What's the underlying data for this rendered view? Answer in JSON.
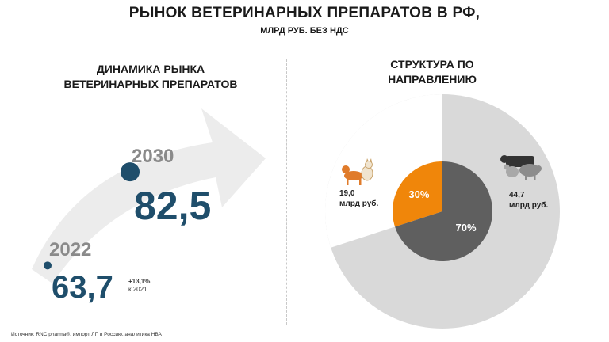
{
  "header": {
    "title": "РЫНОК ВЕТЕРИНАРНЫХ ПРЕПАРАТОВ В РФ,",
    "subtitle": "МЛРД РУБ. БЕЗ НДС"
  },
  "left_panel": {
    "heading_line1": "ДИНАМИКА РЫНКА",
    "heading_line2": "ВЕТЕРИНАРНЫХ ПРЕПАРАТОВ",
    "growth_line1": "+13,1%",
    "growth_line2": "к 2021"
  },
  "right_panel": {
    "heading_line1": "СТРУКТУРА ПО",
    "heading_line2": "НАПРАВЛЕНИЮ",
    "pets_value": "19,0",
    "pets_unit": "млрд руб.",
    "farm_value": "44,7",
    "farm_unit": "млрд руб.",
    "pets_icon": "dog-cat-icon",
    "farm_icon": "farm-animals-icon"
  },
  "source": "Источник: RNC pharma®, импорт ЛП в Россию, аналитика НВА",
  "colors": {
    "navy": "#1f4e6b",
    "gray_year": "#8a8a8a",
    "orange": "#f0860a",
    "dark_gray": "#5f5f5f",
    "light_gray": "#d9d9d9"
  },
  "chart_data": [
    {
      "type": "line",
      "categories": [
        "2022",
        "2030"
      ],
      "values": [
        63.7,
        82.5
      ],
      "value_labels": [
        "63,7",
        "82,5"
      ]
    },
    {
      "type": "pie",
      "categories": [
        "30%",
        "70%"
      ],
      "values": [
        30,
        70
      ],
      "value_labels": [
        "30%",
        "70%"
      ]
    }
  ]
}
